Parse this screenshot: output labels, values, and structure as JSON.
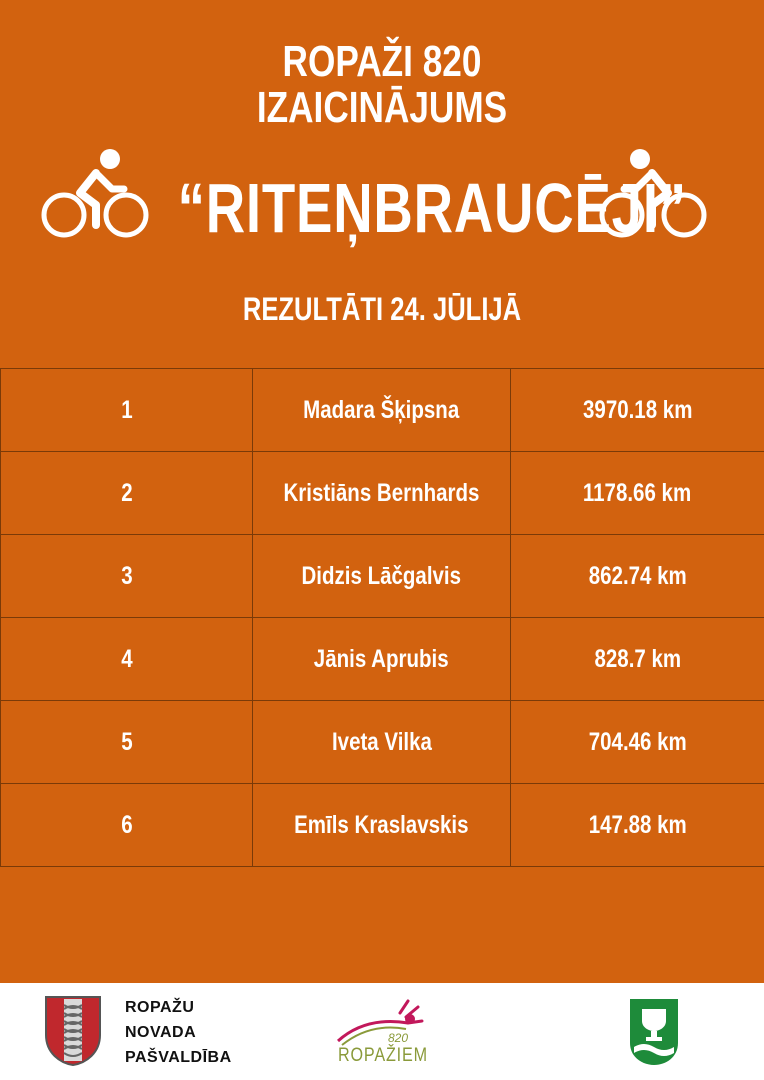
{
  "header": {
    "line1": "ROPAŽI 820",
    "line2": "IZAICINĀJUMS",
    "title": "“RITEŅBRAUCĒJI”",
    "subtitle": "REZULTĀTI 24. JŪLIJĀ"
  },
  "results": [
    {
      "rank": "1",
      "name": "Madara Šķipsna",
      "distance": "3970.18 km"
    },
    {
      "rank": "2",
      "name": "Kristiāns Bernhards",
      "distance": "1178.66 km"
    },
    {
      "rank": "3",
      "name": "Didzis Lāčgalvis",
      "distance": "862.74 km"
    },
    {
      "rank": "4",
      "name": "Jānis Aprubis",
      "distance": "828.7 km"
    },
    {
      "rank": "5",
      "name": "Iveta Vilka",
      "distance": "704.46 km"
    },
    {
      "rank": "6",
      "name": "Emīls Kraslavskis",
      "distance": "147.88 km"
    }
  ],
  "footer": {
    "municipality": [
      "ROPAŽU",
      "NOVADA",
      "PAŠVALDĪBA"
    ],
    "logo_number": "820",
    "logo_word": "ROPAŽIEM"
  },
  "colors": {
    "background": "#D2620F",
    "text": "#FFFFFF",
    "logo_green": "#1E8B3A",
    "logo_red": "#C0282D"
  },
  "icons": [
    "cyclist-icon",
    "municipality-shield-icon",
    "ropazi-820-logo-icon",
    "green-crest-icon"
  ]
}
